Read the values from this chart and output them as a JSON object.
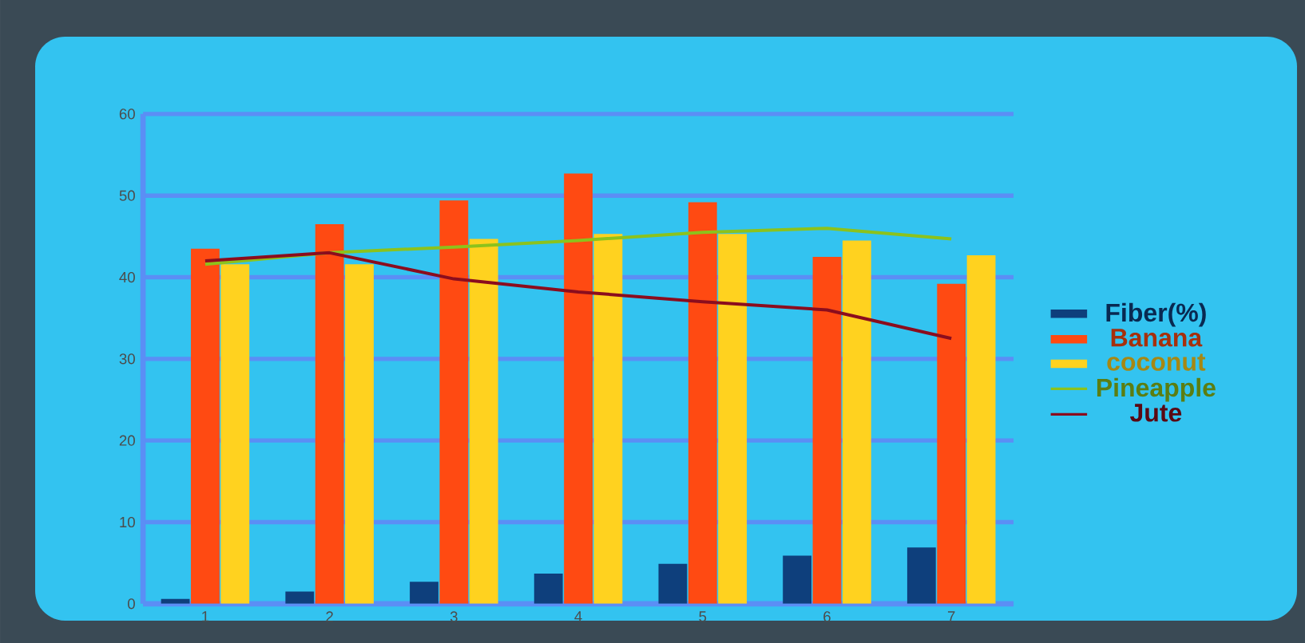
{
  "chart_data": {
    "type": "bar",
    "categories": [
      "1",
      "2",
      "3",
      "4",
      "5",
      "6",
      "7"
    ],
    "series": [
      {
        "name": "Fiber(%)",
        "color": "#0e3f7c",
        "values": [
          0.6,
          1.5,
          2.7,
          3.7,
          4.9,
          5.9,
          6.9
        ]
      },
      {
        "name": "Banana",
        "color": "#ff4a12",
        "values": [
          43.5,
          46.5,
          49.4,
          52.7,
          49.2,
          42.5,
          39.2
        ]
      },
      {
        "name": "coconut",
        "color": "#ffd21f",
        "values": [
          41.6,
          41.6,
          44.7,
          45.3,
          45.3,
          44.5,
          42.7
        ]
      },
      {
        "name": "Pineapple",
        "type": "line",
        "color": "#8cc21c",
        "values": [
          41.6,
          43,
          43.7,
          44.5,
          45.5,
          46,
          44.7
        ]
      },
      {
        "name": "Jute",
        "type": "line",
        "color": "#8b0d1e",
        "values": [
          42,
          43,
          39.8,
          38.2,
          37,
          36,
          32.5
        ]
      }
    ],
    "ylim": [
      0,
      60
    ],
    "yticks": [
      0,
      10,
      20,
      30,
      40,
      50,
      60
    ],
    "grid": "y",
    "legend": "right"
  }
}
